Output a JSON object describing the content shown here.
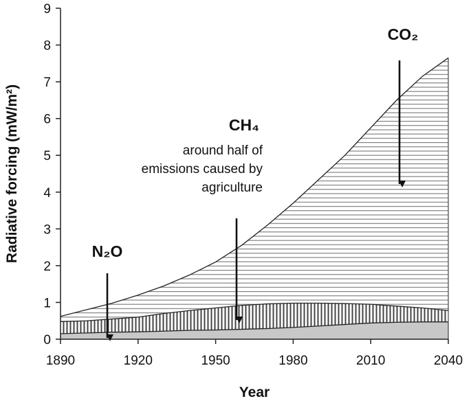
{
  "chart_data": {
    "type": "stacked_area",
    "x_label": "Year",
    "y_label": "Radiative forcing (mW/m²)",
    "x": [
      1890,
      1900,
      1910,
      1920,
      1930,
      1940,
      1950,
      1960,
      1970,
      1980,
      1990,
      2000,
      2010,
      2020,
      2030,
      2040
    ],
    "series": [
      {
        "name": "N₂O",
        "color": "#c8c8c8",
        "pattern": "solid",
        "values": [
          0.15,
          0.17,
          0.19,
          0.2,
          0.22,
          0.24,
          0.25,
          0.27,
          0.29,
          0.32,
          0.36,
          0.4,
          0.44,
          0.46,
          0.47,
          0.47
        ]
      },
      {
        "name": "CH₄",
        "color": "#444444",
        "pattern": "vertical",
        "values": [
          0.33,
          0.33,
          0.36,
          0.4,
          0.48,
          0.54,
          0.6,
          0.65,
          0.67,
          0.66,
          0.62,
          0.57,
          0.51,
          0.44,
          0.38,
          0.31
        ]
      },
      {
        "name": "CO₂",
        "color": "#666666",
        "pattern": "horizontal",
        "values": [
          0.14,
          0.3,
          0.43,
          0.6,
          0.75,
          0.97,
          1.25,
          1.63,
          2.14,
          2.72,
          3.37,
          4.03,
          4.8,
          5.6,
          6.3,
          6.87
        ]
      }
    ],
    "annotation": "around half of emissions caused by agriculture",
    "xlim": [
      1890,
      2040
    ],
    "xticks": [
      1890,
      1920,
      1950,
      1980,
      2010,
      2040
    ],
    "ylim": [
      0,
      9
    ],
    "yticks": [
      0,
      1,
      2,
      3,
      4,
      5,
      6,
      7,
      8,
      9
    ],
    "grid": false
  }
}
